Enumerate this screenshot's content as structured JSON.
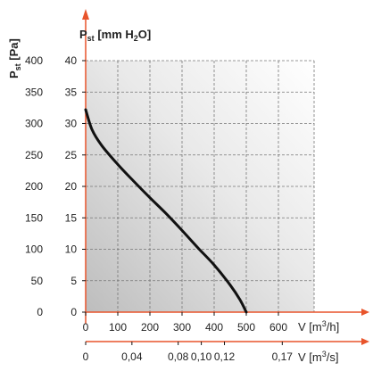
{
  "chart_data": {
    "type": "line",
    "axis_color": "#e8542b",
    "curve_color": "#111111",
    "y_left": {
      "label_main": "P",
      "label_sub": "st",
      "label_unit": "[Pa]",
      "range": [
        0,
        400
      ],
      "ticks": [
        "0",
        "50",
        "100",
        "150",
        "200",
        "250",
        "300",
        "350",
        "400"
      ]
    },
    "y_right": {
      "label_main": "P",
      "label_sub": "st",
      "label_unit_pre": "[mm H",
      "label_unit_sub": "2",
      "label_unit_post": "O]",
      "range": [
        0,
        40
      ],
      "ticks": [
        "0",
        "5",
        "10",
        "15",
        "20",
        "25",
        "30",
        "35",
        "40"
      ]
    },
    "x_top": {
      "label_main": "V",
      "label_unit_pre": "[m",
      "label_unit_sup": "3",
      "label_unit_post": "/h]",
      "range": [
        0,
        700
      ],
      "ticks": [
        "0",
        "100",
        "200",
        "300",
        "400",
        "500",
        "600"
      ]
    },
    "x_bottom": {
      "label_main": "V",
      "label_unit_pre": "[m",
      "label_unit_sup": "3",
      "label_unit_post": "/s]",
      "ticks": [
        {
          "value": 0,
          "label": "0"
        },
        {
          "value": 144,
          "label": "0,04"
        },
        {
          "value": 288,
          "label": "0,08"
        },
        {
          "value": 360,
          "label": "0,10"
        },
        {
          "value": 432,
          "label": "0,12"
        },
        {
          "value": 612,
          "label": "0,17"
        }
      ]
    },
    "series": [
      {
        "x": [
          0,
          20,
          50,
          100,
          150,
          200,
          250,
          300,
          350,
          400,
          450,
          480,
          500
        ],
        "y": [
          322,
          290,
          265,
          235,
          208,
          182,
          157,
          130,
          102,
          75,
          43,
          20,
          0
        ]
      }
    ]
  }
}
